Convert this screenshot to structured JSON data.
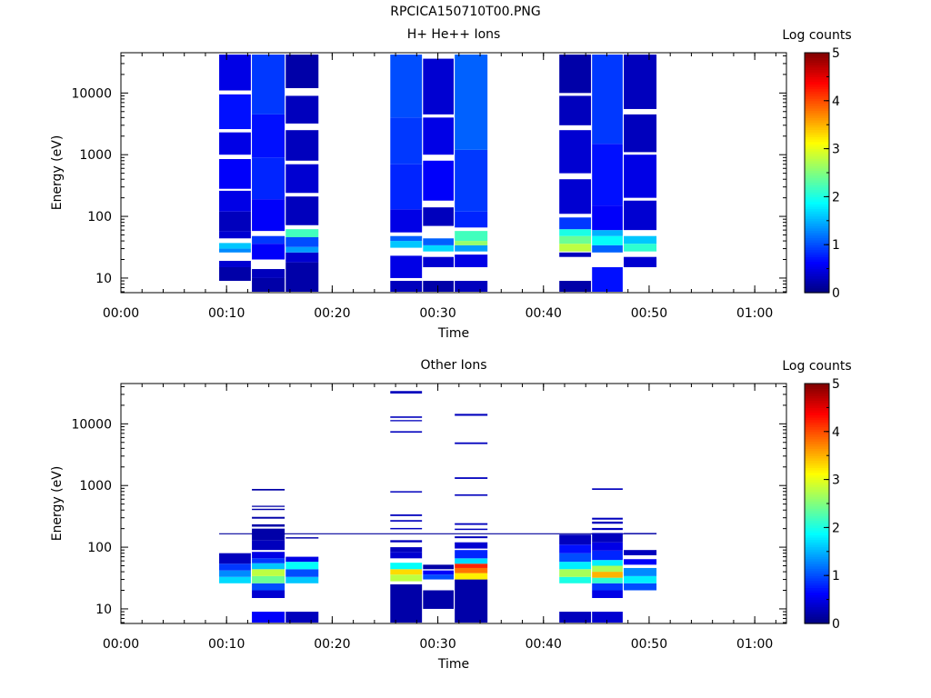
{
  "title": "RPCICA150710T00.PNG",
  "colors": {
    "colormap": "jet",
    "axis": "#000000",
    "background": "#ffffff"
  },
  "chart_data": [
    {
      "type": "heatmap",
      "title": "H+ He++ Ions",
      "xlabel": "Time",
      "ylabel": "Energy (eV)",
      "y_scale": "log",
      "ylim": [
        5.8,
        45000
      ],
      "xlim_minutes": [
        0,
        63
      ],
      "x_ticks": [
        "00:00",
        "00:10",
        "00:20",
        "00:30",
        "00:40",
        "00:50",
        "01:00"
      ],
      "y_ticks": [
        "10",
        "100",
        "1000",
        "10000"
      ],
      "colorbar": {
        "label": "Log counts",
        "range": [
          0,
          5
        ],
        "ticks": [
          "0",
          "1",
          "2",
          "3",
          "4",
          "5"
        ]
      },
      "columns": [
        {
          "t": [
            9.3,
            12.3
          ],
          "bins": [
            [
              9,
              15,
              0.2
            ],
            [
              15,
              19,
              0.4
            ],
            [
              26,
              30,
              1.3
            ],
            [
              30,
              37,
              1.6
            ],
            [
              44,
              58,
              0.4
            ],
            [
              58,
              120,
              0.3
            ],
            [
              120,
              260,
              0.5
            ],
            [
              280,
              850,
              0.6
            ],
            [
              1000,
              2300,
              0.5
            ],
            [
              2600,
              9500,
              0.7
            ],
            [
              11000,
              42000,
              0.5
            ]
          ]
        },
        {
          "t": [
            12.4,
            15.5
          ],
          "bins": [
            [
              6,
              10,
              0.2
            ],
            [
              10,
              14,
              0.3
            ],
            [
              20,
              36,
              0.6
            ],
            [
              36,
              48,
              0.9
            ],
            [
              58,
              190,
              0.6
            ],
            [
              190,
              900,
              0.8
            ],
            [
              900,
              4500,
              0.7
            ],
            [
              4500,
              42000,
              0.9
            ]
          ]
        },
        {
          "t": [
            15.6,
            18.7
          ],
          "bins": [
            [
              6,
              18,
              0.2
            ],
            [
              18,
              26,
              0.4
            ],
            [
              26,
              32,
              1.4
            ],
            [
              32,
              46,
              1.0
            ],
            [
              46,
              62,
              2.2
            ],
            [
              72,
              210,
              0.3
            ],
            [
              240,
              700,
              0.4
            ],
            [
              800,
              2500,
              0.3
            ],
            [
              3200,
              9000,
              0.3
            ],
            [
              12000,
              42000,
              0.2
            ]
          ]
        },
        {
          "t": [
            25.5,
            28.5
          ],
          "bins": [
            [
              6,
              9,
              0.3
            ],
            [
              10,
              23,
              0.5
            ],
            [
              31,
              40,
              1.6
            ],
            [
              40,
              48,
              1.1
            ],
            [
              55,
              130,
              0.5
            ],
            [
              130,
              700,
              0.8
            ],
            [
              700,
              4000,
              0.9
            ],
            [
              4000,
              42000,
              1.0
            ]
          ]
        },
        {
          "t": [
            28.6,
            31.5
          ],
          "bins": [
            [
              6,
              9,
              0.2
            ],
            [
              15,
              22,
              0.4
            ],
            [
              27,
              34,
              1.7
            ],
            [
              34,
              44,
              1.1
            ],
            [
              70,
              140,
              0.3
            ],
            [
              180,
              800,
              0.6
            ],
            [
              1000,
              4000,
              0.5
            ],
            [
              4500,
              36000,
              0.4
            ]
          ]
        },
        {
          "t": [
            31.6,
            34.7
          ],
          "bins": [
            [
              6,
              9,
              0.3
            ],
            [
              15,
              24,
              0.5
            ],
            [
              27,
              34,
              1.4
            ],
            [
              34,
              40,
              2.6
            ],
            [
              40,
              58,
              2.2
            ],
            [
              66,
              120,
              0.8
            ],
            [
              120,
              1200,
              0.9
            ],
            [
              1200,
              42000,
              1.1
            ]
          ]
        },
        {
          "t": [
            41.5,
            44.5
          ],
          "bins": [
            [
              6,
              9,
              0.2
            ],
            [
              22,
              26,
              0.3
            ],
            [
              27,
              36,
              2.8
            ],
            [
              36,
              48,
              2.4
            ],
            [
              48,
              62,
              2.0
            ],
            [
              62,
              96,
              0.9
            ],
            [
              110,
              400,
              0.4
            ],
            [
              500,
              2500,
              0.4
            ],
            [
              3000,
              9000,
              0.3
            ],
            [
              10000,
              42000,
              0.2
            ]
          ]
        },
        {
          "t": [
            44.6,
            47.5
          ],
          "bins": [
            [
              6,
              15,
              0.7
            ],
            [
              26,
              34,
              1.1
            ],
            [
              34,
              48,
              1.9
            ],
            [
              48,
              60,
              1.5
            ],
            [
              60,
              150,
              0.6
            ],
            [
              150,
              1500,
              0.7
            ],
            [
              1500,
              42000,
              0.9
            ]
          ]
        },
        {
          "t": [
            47.6,
            50.7
          ],
          "bins": [
            [
              15,
              22,
              0.4
            ],
            [
              27,
              36,
              2.1
            ],
            [
              36,
              48,
              1.6
            ],
            [
              60,
              180,
              0.4
            ],
            [
              200,
              1000,
              0.5
            ],
            [
              1100,
              4500,
              0.3
            ],
            [
              5500,
              42000,
              0.3
            ]
          ]
        }
      ]
    },
    {
      "type": "heatmap",
      "title": "Other Ions",
      "xlabel": "Time",
      "ylabel": "Energy (eV)",
      "y_scale": "log",
      "ylim": [
        5.8,
        45000
      ],
      "xlim_minutes": [
        0,
        63
      ],
      "x_ticks": [
        "00:00",
        "00:10",
        "00:20",
        "00:30",
        "00:40",
        "00:50",
        "01:00"
      ],
      "y_ticks": [
        "10",
        "100",
        "1000",
        "10000"
      ],
      "colorbar": {
        "label": "Log counts",
        "range": [
          0,
          5
        ],
        "ticks": [
          "0",
          "1",
          "2",
          "3",
          "4",
          "5"
        ]
      },
      "background_line_eV": 165,
      "columns": [
        {
          "t": [
            9.3,
            12.3
          ],
          "bins": [
            [
              26,
              33,
              1.7
            ],
            [
              33,
              42,
              1.3
            ],
            [
              42,
              54,
              0.9
            ],
            [
              54,
              80,
              0.3
            ]
          ]
        },
        {
          "t": [
            12.4,
            15.5
          ],
          "bins": [
            [
              6,
              9,
              0.6
            ],
            [
              15,
              20,
              0.4
            ],
            [
              20,
              26,
              1.0
            ],
            [
              26,
              34,
              2.4
            ],
            [
              34,
              44,
              2.8
            ],
            [
              44,
              55,
              1.6
            ],
            [
              55,
              66,
              0.9
            ],
            [
              66,
              84,
              0.5
            ],
            [
              90,
              130,
              0.3
            ],
            [
              130,
              200,
              0.2
            ],
            [
              215,
              235,
              0.2
            ],
            [
              290,
              310,
              0.2
            ],
            [
              400,
              420,
              0.2
            ],
            [
              450,
              470,
              0.2
            ],
            [
              830,
              880,
              0.2
            ]
          ]
        },
        {
          "t": [
            15.6,
            18.7
          ],
          "bins": [
            [
              6,
              9,
              0.3
            ],
            [
              26,
              33,
              1.6
            ],
            [
              33,
              44,
              1.0
            ],
            [
              44,
              58,
              1.9
            ],
            [
              58,
              70,
              0.5
            ],
            [
              138,
              145,
              0.2
            ]
          ]
        },
        {
          "t": [
            25.5,
            28.5
          ],
          "bins": [
            [
              6,
              25,
              0.2
            ],
            [
              28,
              36,
              2.8
            ],
            [
              36,
              44,
              3.3
            ],
            [
              44,
              56,
              1.9
            ],
            [
              66,
              84,
              0.4
            ],
            [
              84,
              100,
              0.3
            ],
            [
              120,
              130,
              0.3
            ],
            [
              195,
              205,
              0.3
            ],
            [
              260,
              275,
              0.3
            ],
            [
              320,
              340,
              0.3
            ],
            [
              770,
              810,
              0.3
            ],
            [
              7200,
              7600,
              0.3
            ],
            [
              11000,
              11500,
              0.3
            ],
            [
              12500,
              13200,
              0.3
            ],
            [
              31000,
              34000,
              0.3
            ]
          ]
        },
        {
          "t": [
            28.6,
            31.5
          ],
          "bins": [
            [
              10,
              20,
              0.2
            ],
            [
              30,
              36,
              1.0
            ],
            [
              36,
              42,
              0.6
            ],
            [
              44,
              52,
              0.2
            ]
          ]
        },
        {
          "t": [
            31.6,
            34.7
          ],
          "bins": [
            [
              6,
              30,
              0.2
            ],
            [
              30,
              38,
              3.2
            ],
            [
              38,
              46,
              3.8
            ],
            [
              46,
              54,
              4.2
            ],
            [
              54,
              66,
              1.7
            ],
            [
              66,
              90,
              0.8
            ],
            [
              95,
              120,
              0.4
            ],
            [
              140,
              150,
              0.3
            ],
            [
              190,
              200,
              0.3
            ],
            [
              230,
              245,
              0.3
            ],
            [
              680,
              720,
              0.3
            ],
            [
              1280,
              1360,
              0.3
            ],
            [
              4700,
              5000,
              0.3
            ],
            [
              13500,
              14500,
              0.3
            ]
          ]
        },
        {
          "t": [
            41.5,
            44.5
          ],
          "bins": [
            [
              6,
              9,
              0.3
            ],
            [
              26,
              33,
              2.0
            ],
            [
              33,
              44,
              2.7
            ],
            [
              44,
              58,
              1.8
            ],
            [
              58,
              80,
              1.0
            ],
            [
              80,
              110,
              0.7
            ],
            [
              110,
              160,
              0.3
            ]
          ]
        },
        {
          "t": [
            44.6,
            47.5
          ],
          "bins": [
            [
              6,
              9,
              0.4
            ],
            [
              15,
              20,
              0.5
            ],
            [
              20,
              26,
              0.9
            ],
            [
              26,
              32,
              2.1
            ],
            [
              32,
              40,
              3.5
            ],
            [
              40,
              50,
              2.7
            ],
            [
              50,
              62,
              1.8
            ],
            [
              62,
              88,
              0.8
            ],
            [
              88,
              120,
              0.5
            ],
            [
              120,
              170,
              0.3
            ],
            [
              190,
              205,
              0.3
            ],
            [
              240,
              260,
              0.3
            ],
            [
              280,
              300,
              0.3
            ],
            [
              850,
              900,
              0.3
            ]
          ]
        },
        {
          "t": [
            47.6,
            50.7
          ],
          "bins": [
            [
              20,
              26,
              1.0
            ],
            [
              26,
              34,
              1.8
            ],
            [
              34,
              46,
              1.3
            ],
            [
              52,
              64,
              0.6
            ],
            [
              74,
              90,
              0.3
            ],
            [
              165,
              170,
              0.2
            ]
          ]
        }
      ]
    }
  ]
}
